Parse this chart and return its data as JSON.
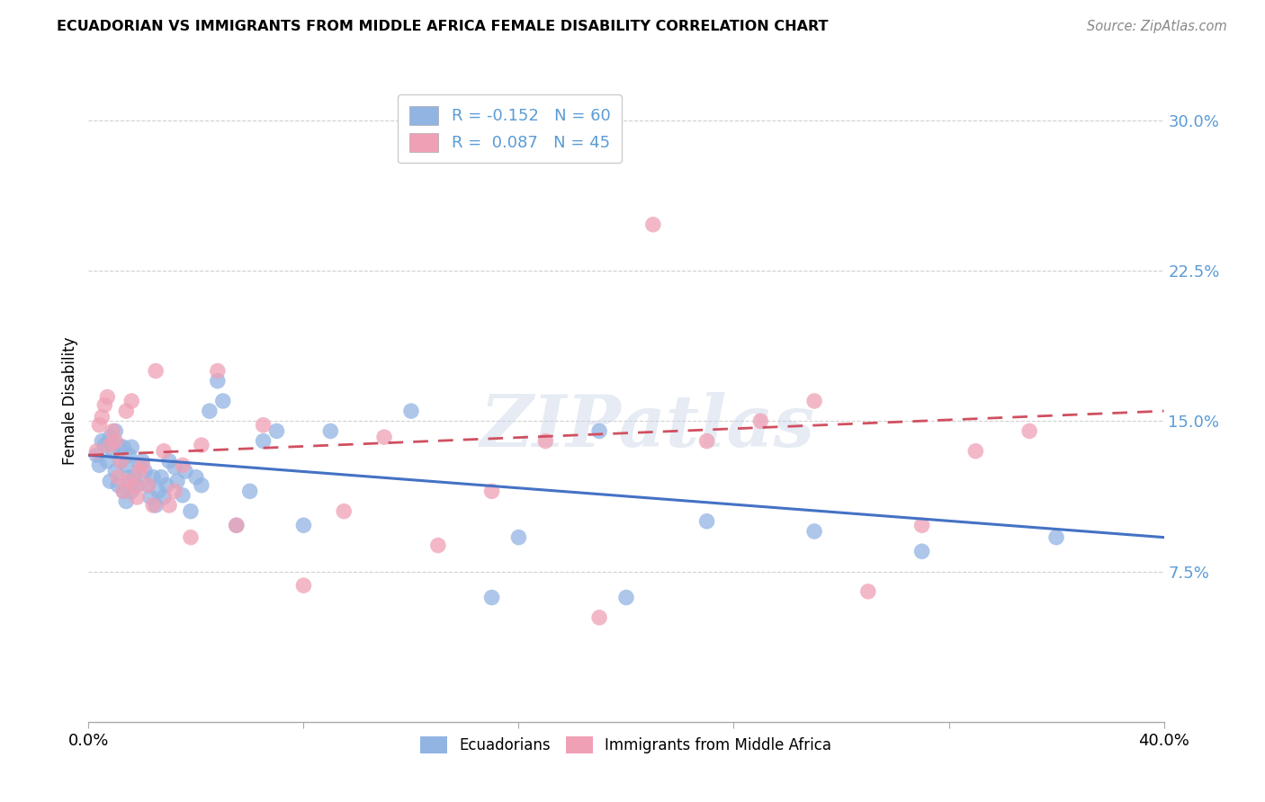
{
  "title": "ECUADORIAN VS IMMIGRANTS FROM MIDDLE AFRICA FEMALE DISABILITY CORRELATION CHART",
  "source": "Source: ZipAtlas.com",
  "ylabel": "Female Disability",
  "xlim": [
    0.0,
    0.4
  ],
  "ylim": [
    0.0,
    0.32
  ],
  "yticks": [
    0.075,
    0.15,
    0.225,
    0.3
  ],
  "xticks": [
    0.0,
    0.08,
    0.16,
    0.24,
    0.32,
    0.4
  ],
  "blue_R": -0.152,
  "blue_N": 60,
  "pink_R": 0.087,
  "pink_N": 45,
  "blue_color": "#92b4e3",
  "pink_color": "#f0a0b5",
  "blue_line_color": "#4472c4",
  "pink_line_color": "#d05060",
  "watermark": "ZIPatlas",
  "blue_x": [
    0.003,
    0.004,
    0.005,
    0.006,
    0.007,
    0.008,
    0.008,
    0.009,
    0.01,
    0.01,
    0.011,
    0.011,
    0.012,
    0.013,
    0.013,
    0.014,
    0.014,
    0.015,
    0.015,
    0.016,
    0.016,
    0.017,
    0.018,
    0.019,
    0.02,
    0.021,
    0.022,
    0.023,
    0.024,
    0.025,
    0.026,
    0.027,
    0.028,
    0.029,
    0.03,
    0.032,
    0.033,
    0.035,
    0.036,
    0.038,
    0.04,
    0.042,
    0.045,
    0.048,
    0.05,
    0.055,
    0.06,
    0.065,
    0.07,
    0.08,
    0.09,
    0.12,
    0.15,
    0.16,
    0.19,
    0.2,
    0.23,
    0.27,
    0.31,
    0.36
  ],
  "blue_y": [
    0.133,
    0.128,
    0.14,
    0.138,
    0.13,
    0.142,
    0.12,
    0.135,
    0.145,
    0.125,
    0.138,
    0.118,
    0.13,
    0.137,
    0.115,
    0.128,
    0.11,
    0.133,
    0.122,
    0.137,
    0.115,
    0.122,
    0.118,
    0.128,
    0.13,
    0.125,
    0.118,
    0.112,
    0.122,
    0.108,
    0.115,
    0.122,
    0.112,
    0.118,
    0.13,
    0.127,
    0.12,
    0.113,
    0.125,
    0.105,
    0.122,
    0.118,
    0.155,
    0.17,
    0.16,
    0.098,
    0.115,
    0.14,
    0.145,
    0.098,
    0.145,
    0.155,
    0.062,
    0.092,
    0.145,
    0.062,
    0.1,
    0.095,
    0.085,
    0.092
  ],
  "pink_x": [
    0.003,
    0.004,
    0.005,
    0.006,
    0.007,
    0.008,
    0.009,
    0.01,
    0.011,
    0.012,
    0.013,
    0.014,
    0.015,
    0.016,
    0.017,
    0.018,
    0.019,
    0.02,
    0.022,
    0.024,
    0.025,
    0.028,
    0.03,
    0.032,
    0.035,
    0.038,
    0.042,
    0.048,
    0.055,
    0.065,
    0.08,
    0.095,
    0.11,
    0.13,
    0.15,
    0.17,
    0.19,
    0.21,
    0.23,
    0.25,
    0.27,
    0.29,
    0.31,
    0.33,
    0.35
  ],
  "pink_y": [
    0.135,
    0.148,
    0.152,
    0.158,
    0.162,
    0.138,
    0.145,
    0.14,
    0.122,
    0.13,
    0.115,
    0.155,
    0.12,
    0.16,
    0.118,
    0.112,
    0.125,
    0.128,
    0.118,
    0.108,
    0.175,
    0.135,
    0.108,
    0.115,
    0.128,
    0.092,
    0.138,
    0.175,
    0.098,
    0.148,
    0.068,
    0.105,
    0.142,
    0.088,
    0.115,
    0.14,
    0.052,
    0.248,
    0.14,
    0.15,
    0.16,
    0.065,
    0.098,
    0.135,
    0.145
  ]
}
